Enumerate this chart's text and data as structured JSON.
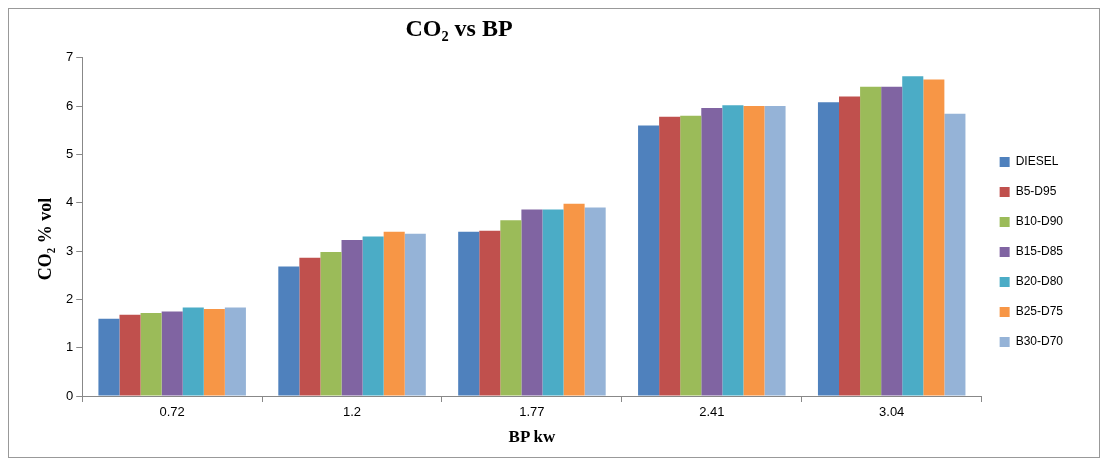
{
  "chart_data": {
    "type": "bar",
    "title": "CO₂  vs BP",
    "xlabel": "BP kw",
    "ylabel": "CO₂ % vol",
    "categories": [
      "0.72",
      "1.2",
      "1.77",
      "2.41",
      "3.04"
    ],
    "series": [
      {
        "name": "DIESEL",
        "color": "#4f81bd",
        "values": [
          1.6,
          2.68,
          3.4,
          5.6,
          6.08
        ]
      },
      {
        "name": "B5-D95",
        "color": "#c0504d",
        "values": [
          1.68,
          2.86,
          3.42,
          5.78,
          6.2
        ]
      },
      {
        "name": "B10-D90",
        "color": "#9bbb59",
        "values": [
          1.72,
          2.98,
          3.64,
          5.8,
          6.4
        ]
      },
      {
        "name": "B15-D85",
        "color": "#8064a2",
        "values": [
          1.75,
          3.23,
          3.86,
          5.96,
          6.4
        ]
      },
      {
        "name": "B20-D80",
        "color": "#4bacc6",
        "values": [
          1.83,
          3.3,
          3.86,
          6.02,
          6.62
        ]
      },
      {
        "name": "B25-D75",
        "color": "#f79646",
        "values": [
          1.8,
          3.4,
          3.98,
          6.0,
          6.55
        ]
      },
      {
        "name": "B30-D70",
        "color": "#95b3d7",
        "values": [
          1.83,
          3.36,
          3.9,
          6.0,
          5.84
        ]
      }
    ],
    "ylim": [
      0,
      7
    ],
    "yticks": [
      0,
      1,
      2,
      3,
      4,
      5,
      6,
      7
    ],
    "grid": false,
    "legend": "right"
  }
}
